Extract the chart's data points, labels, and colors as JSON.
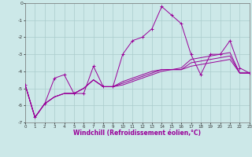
{
  "title": "",
  "xlabel": "Windchill (Refroidissement éolien,°C)",
  "xlim": [
    0,
    23
  ],
  "ylim": [
    -7,
    0
  ],
  "yticks": [
    0,
    -1,
    -2,
    -3,
    -4,
    -5,
    -6,
    -7
  ],
  "xticks": [
    0,
    1,
    2,
    3,
    4,
    5,
    6,
    7,
    8,
    9,
    10,
    11,
    12,
    13,
    14,
    15,
    16,
    17,
    18,
    19,
    20,
    21,
    22,
    23
  ],
  "background_color": "#cce8e8",
  "grid_color": "#aacccc",
  "line_color": "#990099",
  "line1_x": [
    0,
    1,
    2,
    3,
    4,
    5,
    6,
    7,
    8,
    9,
    10,
    11,
    12,
    13,
    14,
    15,
    16,
    17,
    18,
    19,
    20,
    21,
    22,
    23
  ],
  "line1_y": [
    -4.8,
    -6.7,
    -5.9,
    -4.4,
    -4.2,
    -5.3,
    -5.3,
    -3.7,
    -4.9,
    -4.9,
    -3.0,
    -2.2,
    -2.0,
    -1.5,
    -0.2,
    -0.7,
    -1.2,
    -3.0,
    -4.2,
    -3.0,
    -3.0,
    -2.2,
    -3.8,
    -4.1
  ],
  "line2_x": [
    0,
    1,
    2,
    3,
    4,
    5,
    6,
    7,
    8,
    9,
    10,
    11,
    12,
    13,
    14,
    15,
    16,
    17,
    18,
    19,
    20,
    21,
    22,
    23
  ],
  "line2_y": [
    -4.8,
    -6.7,
    -5.9,
    -5.5,
    -5.3,
    -5.3,
    -5.0,
    -4.5,
    -4.9,
    -4.9,
    -4.6,
    -4.4,
    -4.2,
    -4.0,
    -3.9,
    -3.9,
    -3.8,
    -3.3,
    -3.2,
    -3.1,
    -3.0,
    -2.9,
    -4.1,
    -4.1
  ],
  "line3_x": [
    0,
    1,
    2,
    3,
    4,
    5,
    6,
    7,
    8,
    9,
    10,
    11,
    12,
    13,
    14,
    15,
    16,
    17,
    18,
    19,
    20,
    21,
    22,
    23
  ],
  "line3_y": [
    -4.8,
    -6.7,
    -5.9,
    -5.5,
    -5.3,
    -5.3,
    -5.0,
    -4.5,
    -4.9,
    -4.9,
    -4.7,
    -4.5,
    -4.3,
    -4.1,
    -3.9,
    -3.9,
    -3.9,
    -3.7,
    -3.6,
    -3.5,
    -3.4,
    -3.3,
    -4.1,
    -4.1
  ],
  "line4_x": [
    0,
    1,
    2,
    3,
    4,
    5,
    6,
    7,
    8,
    9,
    10,
    11,
    12,
    13,
    14,
    15,
    16,
    17,
    18,
    19,
    20,
    21,
    22,
    23
  ],
  "line4_y": [
    -4.8,
    -6.7,
    -5.9,
    -5.5,
    -5.3,
    -5.3,
    -5.0,
    -4.5,
    -4.9,
    -4.9,
    -4.8,
    -4.6,
    -4.4,
    -4.2,
    -4.0,
    -3.9,
    -3.9,
    -3.5,
    -3.4,
    -3.3,
    -3.2,
    -3.1,
    -4.1,
    -4.1
  ]
}
